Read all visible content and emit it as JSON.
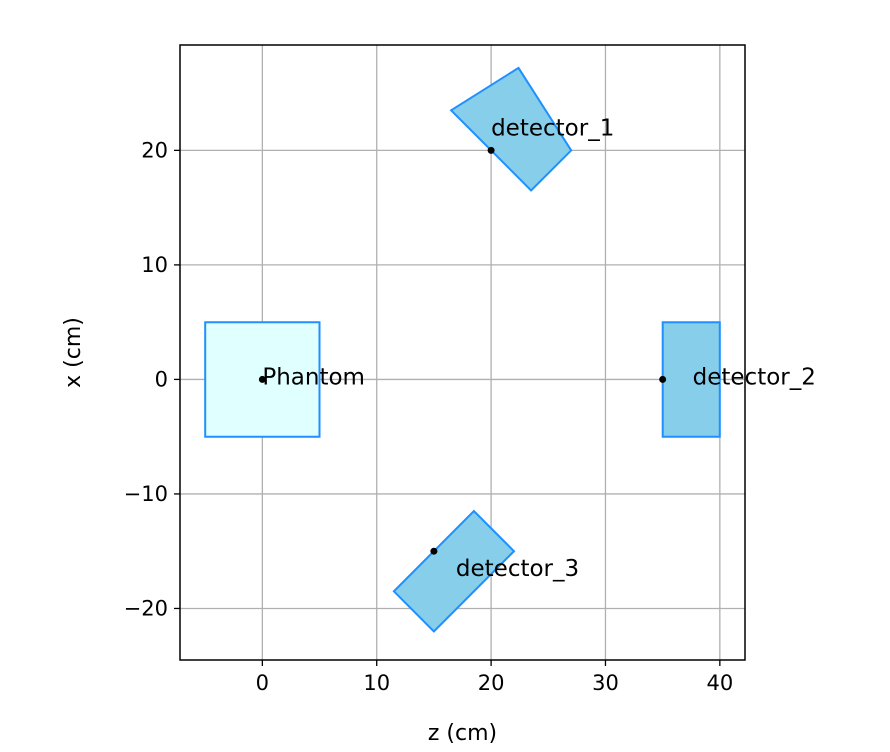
{
  "chart_data": {
    "type": "scatter",
    "title": "",
    "xlabel": "z (cm)",
    "ylabel": "x (cm)",
    "xlim": [
      -7.2,
      42.2
    ],
    "ylim": [
      -24.5,
      29.2
    ],
    "xticks": [
      0,
      10,
      20,
      30,
      40
    ],
    "yticks": [
      -20,
      -10,
      0,
      10,
      20
    ],
    "xtick_labels": [
      "0",
      "10",
      "20",
      "30",
      "40"
    ],
    "ytick_labels": [
      "−20",
      "−10",
      "0",
      "10",
      "20"
    ],
    "grid": true,
    "objects": [
      {
        "label": "Phantom",
        "center": [
          0,
          0
        ],
        "corners": [
          [
            -5,
            -5
          ],
          [
            5,
            -5
          ],
          [
            5,
            5
          ],
          [
            -5,
            5
          ]
        ],
        "fill": "#e0ffff",
        "edge": "#1e90ff"
      },
      {
        "label": "detector_1",
        "center": [
          20,
          20
        ],
        "corners": [
          [
            16.5,
            23.5
          ],
          [
            22.4,
            27.2
          ],
          [
            27,
            20
          ],
          [
            23.5,
            16.5
          ]
        ],
        "fill": "#87ceeb",
        "edge": "#1e90ff"
      },
      {
        "label": "detector_2",
        "center": [
          35,
          0
        ],
        "corners": [
          [
            35,
            -5
          ],
          [
            40,
            -5
          ],
          [
            40,
            5
          ],
          [
            35,
            5
          ]
        ],
        "fill": "#87ceeb",
        "edge": "#1e90ff"
      },
      {
        "label": "detector_3",
        "center": [
          15,
          -15
        ],
        "corners": [
          [
            11.5,
            -18.5
          ],
          [
            15,
            -22
          ],
          [
            22,
            -15
          ],
          [
            18.5,
            -11.5
          ]
        ],
        "fill": "#87ceeb",
        "edge": "#1e90ff"
      }
    ]
  }
}
